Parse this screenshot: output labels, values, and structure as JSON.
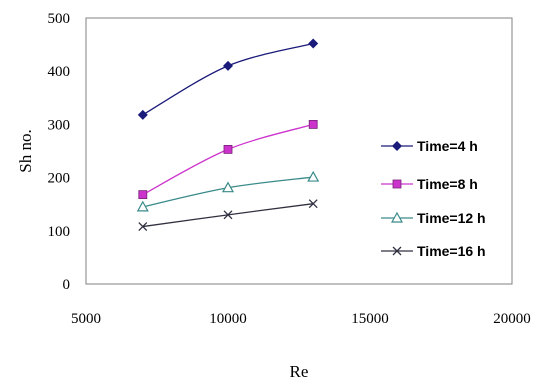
{
  "chart_data": {
    "type": "line",
    "xlabel": "Re",
    "ylabel": "Sh no.",
    "xlim": [
      5000,
      20000
    ],
    "ylim": [
      0,
      500
    ],
    "xticks": [
      "5000",
      "10000",
      "15000",
      "20000"
    ],
    "yticks": [
      "0",
      "100",
      "200",
      "300",
      "400",
      "500"
    ],
    "grid": false,
    "legend_position": "right",
    "series": [
      {
        "name": "Time=4 h",
        "x": [
          7000,
          10000,
          13000
        ],
        "values": [
          318,
          410,
          452
        ],
        "color": "#1a1a7a",
        "marker": "diamond"
      },
      {
        "name": "Time=8 h",
        "x": [
          7000,
          10000,
          13000
        ],
        "values": [
          168,
          253,
          300
        ],
        "color": "#cc33cc",
        "marker": "square"
      },
      {
        "name": "Time=12 h",
        "x": [
          7000,
          10000,
          13000
        ],
        "values": [
          145,
          181,
          201
        ],
        "color": "#3a8a8a",
        "marker": "triangle"
      },
      {
        "name": "Time=16 h",
        "x": [
          7000,
          10000,
          13000
        ],
        "values": [
          108,
          130,
          151
        ],
        "color": "#303040",
        "marker": "x"
      }
    ]
  }
}
